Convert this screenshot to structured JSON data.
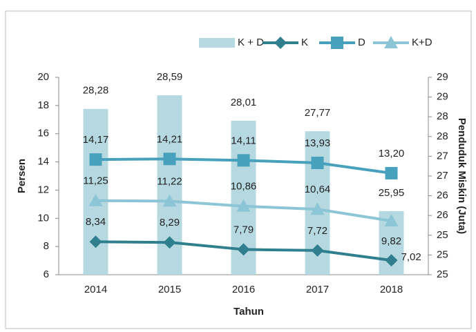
{
  "chart_data": {
    "type": "bar",
    "x_label": "Tahun",
    "y_label": "Persen",
    "y2_label": "Penduduk Miskin (Juta)",
    "categories": [
      "2014",
      "2015",
      "2016",
      "2017",
      "2018"
    ],
    "ylim": [
      6,
      20
    ],
    "yticks": [
      6,
      8,
      10,
      12,
      14,
      16,
      18,
      20
    ],
    "y2lim": [
      24.5,
      29
    ],
    "y2ticks": [
      {
        "value": 24.5,
        "label": "25"
      },
      {
        "value": 24.95,
        "label": "25"
      },
      {
        "value": 25.4,
        "label": "25"
      },
      {
        "value": 25.85,
        "label": "26"
      },
      {
        "value": 26.3,
        "label": "26"
      },
      {
        "value": 26.75,
        "label": "27"
      },
      {
        "value": 27.2,
        "label": "27"
      },
      {
        "value": 27.65,
        "label": "28"
      },
      {
        "value": 28.1,
        "label": "28"
      },
      {
        "value": 28.55,
        "label": "29"
      },
      {
        "value": 29,
        "label": "29"
      }
    ],
    "legend": "top-right",
    "series": [
      {
        "name": "K + D",
        "type": "bar",
        "axis": "y2",
        "color": "#b5d8e1",
        "values": [
          28.28,
          28.59,
          28.01,
          27.77,
          25.95
        ],
        "value_labels": [
          "28,28",
          "28,59",
          "28,01",
          "27,77",
          "25,95"
        ]
      },
      {
        "name": "K",
        "type": "line",
        "marker": "diamond",
        "color": "#2f7f8f",
        "values": [
          8.34,
          8.29,
          7.79,
          7.72,
          7.02
        ],
        "value_labels": [
          "8,34",
          "8,29",
          "7,79",
          "7,72",
          "7,02"
        ]
      },
      {
        "name": "D",
        "type": "line",
        "marker": "square",
        "color": "#47a1bc",
        "values": [
          14.17,
          14.21,
          14.11,
          13.93,
          13.2
        ],
        "value_labels": [
          "14,17",
          "14,21",
          "14,11",
          "13,93",
          "13,20"
        ]
      },
      {
        "name": "K+D",
        "type": "line",
        "marker": "triangle",
        "color": "#8cc6d6",
        "values": [
          11.25,
          11.22,
          10.86,
          10.64,
          9.82
        ],
        "value_labels": [
          "11,25",
          "11,22",
          "10,86",
          "10,64",
          "9,82"
        ]
      }
    ]
  }
}
